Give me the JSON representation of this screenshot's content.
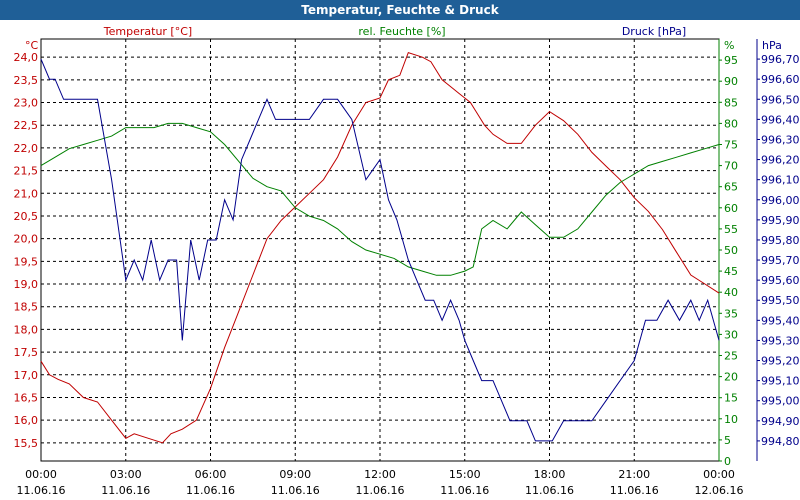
{
  "window": {
    "title": "Temperatur, Feuchte & Druck"
  },
  "colors": {
    "titlebar": "#1f5f97",
    "temperature": "#c00000",
    "humidity": "#008000",
    "pressure": "#00008b",
    "grid": "#000000"
  },
  "chart_data": {
    "type": "line",
    "title": "Temperatur, Feuchte & Druck",
    "grid": true,
    "x_axis": {
      "range": [
        "11.06.16 00:00",
        "12.06.16 00:00"
      ],
      "ticks": [
        {
          "time": "00:00",
          "date": "11.06.16"
        },
        {
          "time": "03:00",
          "date": "11.06.16"
        },
        {
          "time": "06:00",
          "date": "11.06.16"
        },
        {
          "time": "09:00",
          "date": "11.06.16"
        },
        {
          "time": "12:00",
          "date": "11.06.16"
        },
        {
          "time": "15:00",
          "date": "11.06.16"
        },
        {
          "time": "18:00",
          "date": "11.06.16"
        },
        {
          "time": "21:00",
          "date": "11.06.16"
        },
        {
          "time": "00:00",
          "date": "12.06.16"
        }
      ]
    },
    "axes": {
      "temperature": {
        "label": "Temperatur [°C]",
        "unit": "°C",
        "range": [
          15.1,
          24.4
        ],
        "ticks": [
          "24,0",
          "23,5",
          "23,0",
          "22,5",
          "22,0",
          "21,5",
          "21,0",
          "20,5",
          "20,0",
          "19,5",
          "19,0",
          "18,5",
          "18,0",
          "17,5",
          "17,0",
          "16,5",
          "16,0",
          "15,5"
        ]
      },
      "humidity": {
        "label": "rel. Feuchte [%]",
        "unit": "%",
        "range": [
          0,
          100
        ],
        "ticks": [
          "95",
          "90",
          "85",
          "80",
          "75",
          "70",
          "65",
          "60",
          "55",
          "50",
          "45",
          "40",
          "35",
          "30",
          "25",
          "20",
          "15",
          "10",
          "5",
          "0"
        ]
      },
      "pressure": {
        "label": "Druck [hPa]",
        "unit": "hPa",
        "range": [
          994.7,
          996.8
        ],
        "ticks": [
          "996,70",
          "996,60",
          "996,50",
          "996,40",
          "996,30",
          "996,20",
          "996,10",
          "996,00",
          "995,90",
          "995,80",
          "995,70",
          "995,60",
          "995,50",
          "995,40",
          "995,30",
          "995,20",
          "995,10",
          "995,00",
          "994,90",
          "994,80"
        ]
      }
    },
    "series": [
      {
        "name": "Temperatur [°C]",
        "axis": "temperature",
        "color": "#c00000",
        "x": [
          0,
          0.3,
          0.6,
          1,
          1.5,
          2,
          2.5,
          3,
          3.3,
          3.8,
          4.3,
          4.6,
          5,
          5.5,
          6,
          6.5,
          7,
          7.5,
          8,
          8.5,
          9,
          9.5,
          10,
          10.5,
          11,
          11.5,
          12,
          12.3,
          12.7,
          13,
          13.5,
          13.8,
          14,
          14.2,
          14.4,
          14.6,
          14.8,
          15,
          15.2,
          15.4,
          15.7,
          16,
          16.5,
          17,
          17.5,
          18,
          18.5,
          19,
          19.5,
          20,
          20.5,
          21,
          21.5,
          22,
          22.5,
          23,
          23.5,
          24
        ],
        "values": [
          17.3,
          17.0,
          16.9,
          16.8,
          16.5,
          16.4,
          16.0,
          15.6,
          15.7,
          15.6,
          15.5,
          15.7,
          15.8,
          16.0,
          16.7,
          17.6,
          18.4,
          19.2,
          20.0,
          20.4,
          20.7,
          21.0,
          21.3,
          21.8,
          22.5,
          23.0,
          23.1,
          23.5,
          23.6,
          24.1,
          24.0,
          23.9,
          23.7,
          23.5,
          23.4,
          23.3,
          23.2,
          23.1,
          23.0,
          22.8,
          22.5,
          22.3,
          22.1,
          22.1,
          22.5,
          22.8,
          22.6,
          22.3,
          21.9,
          21.6,
          21.3,
          20.9,
          20.6,
          20.2,
          19.7,
          19.2,
          19.0,
          18.8
        ]
      },
      {
        "name": "rel. Feuchte [%]",
        "axis": "humidity",
        "color": "#008000",
        "x": [
          0,
          0.5,
          1,
          1.5,
          2,
          2.5,
          3,
          3.5,
          4,
          4.5,
          5,
          5.5,
          6,
          6.5,
          7,
          7.5,
          8,
          8.5,
          9,
          9.5,
          10,
          10.5,
          11,
          11.5,
          12,
          12.5,
          13,
          13.5,
          14,
          14.5,
          15,
          15.3,
          15.6,
          16,
          16.5,
          17,
          17.5,
          18,
          18.5,
          19,
          19.5,
          20,
          20.5,
          21,
          21.5,
          22,
          22.5,
          23,
          23.5,
          24
        ],
        "values": [
          70,
          72,
          74,
          75,
          76,
          77,
          79,
          79,
          79,
          80,
          80,
          79,
          78,
          75,
          71,
          67,
          65,
          64,
          60,
          58,
          57,
          55,
          52,
          50,
          49,
          48,
          46,
          45,
          44,
          44,
          45,
          46,
          55,
          57,
          55,
          59,
          56,
          53,
          53,
          55,
          59,
          63,
          66,
          68,
          70,
          71,
          72,
          73,
          74,
          75
        ]
      },
      {
        "name": "Druck [hPa]",
        "axis": "pressure",
        "color": "#00008b",
        "x": [
          0,
          0.3,
          0.5,
          0.8,
          1,
          1.5,
          2,
          2.5,
          3,
          3.3,
          3.6,
          3.9,
          4.2,
          4.5,
          4.8,
          5,
          5.3,
          5.6,
          5.9,
          6.2,
          6.5,
          6.8,
          7.1,
          7.4,
          7.7,
          8,
          8.3,
          8.6,
          9,
          9.5,
          10,
          10.5,
          11,
          11.5,
          12,
          12.3,
          12.6,
          13,
          13.3,
          13.6,
          13.9,
          14.2,
          14.5,
          14.8,
          15,
          15.3,
          15.6,
          16,
          16.3,
          16.6,
          16.9,
          17.2,
          17.5,
          17.8,
          18.1,
          18.5,
          19,
          19.5,
          20,
          20.5,
          21,
          21.4,
          21.8,
          22.2,
          22.6,
          23,
          23.3,
          23.6,
          24
        ],
        "values": [
          996.7,
          996.6,
          996.6,
          996.5,
          996.5,
          996.5,
          996.5,
          996.1,
          995.6,
          995.7,
          995.6,
          995.8,
          995.6,
          995.7,
          995.7,
          995.3,
          995.8,
          995.6,
          995.8,
          995.8,
          996.0,
          995.9,
          996.2,
          996.3,
          996.4,
          996.5,
          996.4,
          996.4,
          996.4,
          996.4,
          996.5,
          996.5,
          996.4,
          996.1,
          996.2,
          996.0,
          995.9,
          995.7,
          995.6,
          995.5,
          995.5,
          995.4,
          995.5,
          995.4,
          995.3,
          995.2,
          995.1,
          995.1,
          995.0,
          994.9,
          994.9,
          994.9,
          994.8,
          994.8,
          994.8,
          994.9,
          994.9,
          994.9,
          995.0,
          995.1,
          995.2,
          995.4,
          995.4,
          995.5,
          995.4,
          995.5,
          995.4,
          995.5,
          995.3
        ]
      }
    ]
  }
}
